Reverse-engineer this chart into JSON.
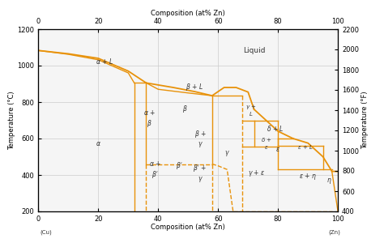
{
  "title_top": "Composition (at% Zn)",
  "title_bottom": "Composition (at% Zn)",
  "ylabel_left": "Temperature (°C)",
  "ylabel_right": "Temperature (°F)",
  "xlim": [
    0,
    100
  ],
  "ylim_C": [
    200,
    1200
  ],
  "ylim_F": [
    400,
    2200
  ],
  "xticks": [
    0,
    20,
    40,
    60,
    80,
    100
  ],
  "yticks_C": [
    200,
    400,
    600,
    800,
    1000,
    1200
  ],
  "yticks_F": [
    400,
    600,
    800,
    1000,
    1200,
    1400,
    1600,
    1800,
    2000,
    2200
  ],
  "line_color": "#E8920A",
  "bg_color": "#F5F5F5",
  "grid_color": "#CCCCCC",
  "text_color": "#333333",
  "ann_fs": 5.5
}
